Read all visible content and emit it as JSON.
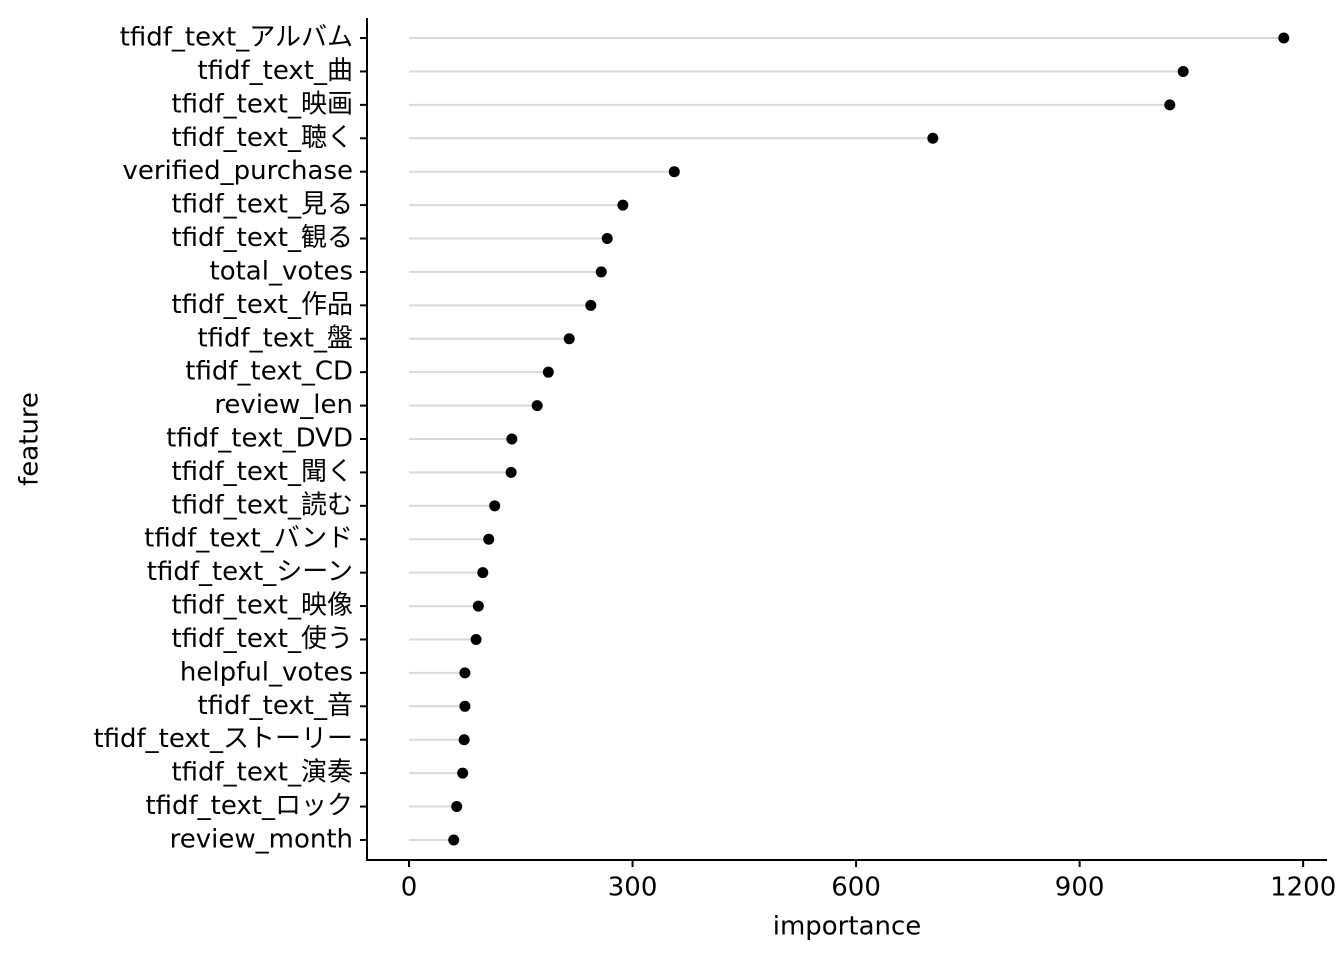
{
  "chart_data": {
    "type": "lollipop",
    "x_label": "importance",
    "y_label": "feature",
    "categories": [
      "tfidf_text_アルバム",
      "tfidf_text_曲",
      "tfidf_text_映画",
      "tfidf_text_聴く",
      "verified_purchase",
      "tfidf_text_見る",
      "tfidf_text_観る",
      "total_votes",
      "tfidf_text_作品",
      "tfidf_text_盤",
      "tfidf_text_CD",
      "review_len",
      "tfidf_text_DVD",
      "tfidf_text_聞く",
      "tfidf_text_読む",
      "tfidf_text_バンド",
      "tfidf_text_シーン",
      "tfidf_text_映像",
      "tfidf_text_使う",
      "helpful_votes",
      "tfidf_text_音",
      "tfidf_text_ストーリー",
      "tfidf_text_演奏",
      "tfidf_text_ロック",
      "review_month"
    ],
    "values": [
      1174,
      1039,
      1021,
      703,
      356,
      287,
      266,
      258,
      244,
      215,
      187,
      172,
      138,
      137,
      115,
      107,
      99,
      93,
      90,
      75,
      75,
      74,
      72,
      64,
      60
    ],
    "color": "#000000",
    "stem_color": "#d9d9d9",
    "xlim": [
      -56.4,
      1232
    ],
    "xticks": [
      0,
      300,
      600,
      900,
      1200
    ]
  }
}
